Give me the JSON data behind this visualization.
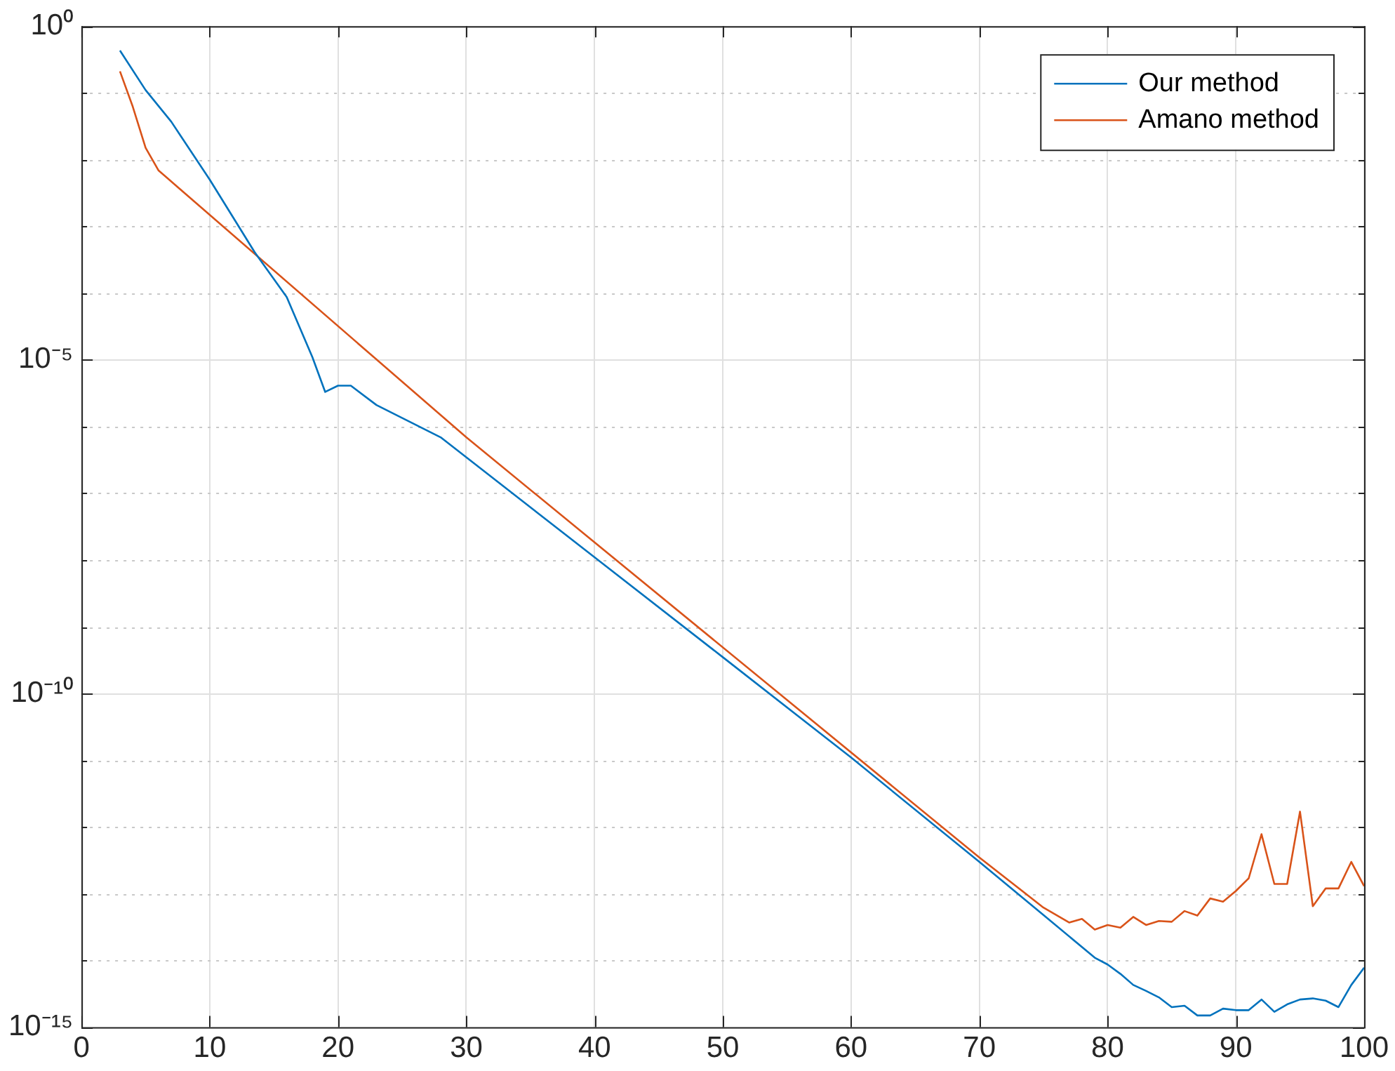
{
  "chart_data": {
    "type": "line",
    "log": "y",
    "grid": true,
    "legend": "top right",
    "line_style": "solid",
    "marker": "none",
    "xlim": [
      0,
      100
    ],
    "xticks": [
      0,
      10,
      20,
      30,
      40,
      50,
      60,
      70,
      80,
      90,
      100
    ],
    "ylim": [
      1e-15,
      1
    ],
    "yticks": [
      {
        "value": 1e-15,
        "label": "10⁻¹⁵"
      },
      {
        "value": 1e-14,
        "label": null
      },
      {
        "value": 1e-13,
        "label": null
      },
      {
        "value": 1e-12,
        "label": null
      },
      {
        "value": 1e-11,
        "label": null
      },
      {
        "value": 1e-10,
        "label": "10⁻¹⁰"
      },
      {
        "value": 1e-09,
        "label": null
      },
      {
        "value": 1e-08,
        "label": null
      },
      {
        "value": 1e-07,
        "label": null
      },
      {
        "value": 1e-06,
        "label": null
      },
      {
        "value": 1e-05,
        "label": "10⁻⁵"
      },
      {
        "value": 0.0001,
        "label": null
      },
      {
        "value": 0.001,
        "label": null
      },
      {
        "value": 0.01,
        "label": null
      },
      {
        "value": 0.1,
        "label": null
      },
      {
        "value": 1,
        "label": "10⁰"
      }
    ],
    "series": [
      {
        "name": "Our method",
        "color": "#0072bd",
        "x": [
          3,
          5,
          7,
          10,
          13.5,
          16,
          18,
          19,
          20,
          21,
          23,
          28,
          40,
          50,
          60,
          70,
          75,
          79,
          80,
          81,
          82,
          83,
          84,
          85,
          86,
          87,
          88,
          89,
          90,
          91,
          92,
          93,
          94,
          95,
          96,
          97,
          98,
          99,
          100
        ],
        "values": [
          0.43,
          0.11,
          0.037,
          0.005,
          0.00041,
          8.7e-05,
          1.1e-05,
          3.3e-06,
          4.1e-06,
          4.1e-06,
          2.1e-06,
          6.9e-07,
          1.1e-08,
          3.5e-10,
          1.1e-11,
          3e-13,
          4.8e-14,
          1.1e-14,
          8.7e-15,
          6.3e-15,
          4.3e-15,
          3.5e-15,
          2.8e-15,
          2e-15,
          2.1e-15,
          1.5e-15,
          1.5e-15,
          1.9e-15,
          1.8e-15,
          1.8e-15,
          2.6e-15,
          1.7e-15,
          2.2e-15,
          2.6e-15,
          2.7e-15,
          2.5e-15,
          2e-15,
          4.3e-15,
          7.8e-15
        ]
      },
      {
        "name": "Amano method",
        "color": "#d95319",
        "x": [
          3,
          4,
          5,
          6,
          30,
          70,
          75,
          77,
          78,
          79,
          80,
          81,
          82,
          83,
          84,
          85,
          86,
          87,
          88,
          89,
          90,
          91,
          92,
          93,
          94,
          95,
          96,
          97,
          98,
          99,
          100
        ],
        "values": [
          0.21,
          0.062,
          0.015,
          0.0069,
          6.9e-07,
          3.5e-13,
          6.2e-14,
          3.7e-14,
          4.2e-14,
          2.9e-14,
          3.4e-14,
          3.1e-14,
          4.5e-14,
          3.4e-14,
          3.9e-14,
          3.8e-14,
          5.5e-14,
          4.7e-14,
          8.5e-14,
          7.6e-14,
          1.1e-13,
          1.7e-13,
          7.8e-13,
          1.4e-13,
          1.4e-13,
          1.7e-12,
          6.5e-14,
          1.2e-13,
          1.2e-13,
          3e-13,
          1.3e-13
        ]
      }
    ]
  }
}
